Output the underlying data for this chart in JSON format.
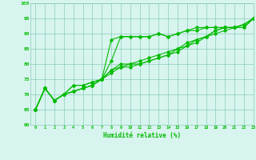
{
  "xlabel": "Humidité relative (%)",
  "background_color": "#d8f4ee",
  "grid_color": "#88ccbb",
  "line_color": "#00bb00",
  "xlim": [
    -0.5,
    23
  ],
  "ylim": [
    60,
    100
  ],
  "xticks": [
    0,
    1,
    2,
    3,
    4,
    5,
    6,
    7,
    8,
    9,
    10,
    11,
    12,
    13,
    14,
    15,
    16,
    17,
    18,
    19,
    20,
    21,
    22,
    23
  ],
  "yticks": [
    60,
    65,
    70,
    75,
    80,
    85,
    90,
    95,
    100
  ],
  "series": [
    [
      65,
      72,
      68,
      70,
      73,
      73,
      74,
      75,
      88,
      89,
      89,
      89,
      89,
      90,
      89,
      90,
      91,
      92,
      92,
      92,
      92,
      92,
      92,
      95
    ],
    [
      65,
      72,
      68,
      70,
      73,
      73,
      74,
      75,
      81,
      89,
      89,
      89,
      89,
      90,
      89,
      90,
      91,
      91,
      92,
      92,
      92,
      92,
      92,
      95
    ],
    [
      65,
      72,
      68,
      70,
      71,
      72,
      73,
      75,
      78,
      80,
      80,
      81,
      82,
      83,
      84,
      85,
      87,
      88,
      89,
      91,
      92,
      92,
      93,
      95
    ],
    [
      65,
      72,
      68,
      70,
      71,
      72,
      73,
      75,
      78,
      79,
      80,
      80,
      81,
      82,
      83,
      85,
      86,
      88,
      89,
      91,
      92,
      92,
      93,
      95
    ],
    [
      65,
      72,
      68,
      70,
      71,
      72,
      73,
      75,
      77,
      79,
      79,
      80,
      81,
      82,
      83,
      84,
      86,
      87,
      89,
      90,
      91,
      92,
      93,
      95
    ]
  ]
}
